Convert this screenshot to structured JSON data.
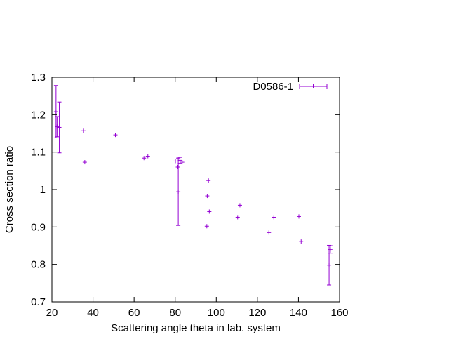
{
  "chart_data": {
    "type": "scatter",
    "title": "",
    "xlabel": "Scattering angle theta in lab. system",
    "ylabel": "Cross section ratio",
    "xlim": [
      20,
      160
    ],
    "ylim": [
      0.7,
      1.3
    ],
    "xticks": [
      20,
      40,
      60,
      80,
      100,
      120,
      140,
      160
    ],
    "yticks": [
      0.7,
      0.8,
      0.9,
      1,
      1.1,
      1.2,
      1.3
    ],
    "xtick_labels": [
      "20",
      "40",
      "60",
      "80",
      "100",
      "120",
      "140",
      "160"
    ],
    "ytick_labels": [
      "0.7",
      "0.8",
      "0.9",
      "1",
      "1.1",
      "1.2",
      "1.3"
    ],
    "grid": false,
    "legend_position": "top-right",
    "series": [
      {
        "name": "D0586-1",
        "color": "#9400d3",
        "points": [
          {
            "x": 22.0,
            "y": 1.208,
            "yerr": 0.07
          },
          {
            "x": 22.5,
            "y": 1.168,
            "yerr": 0.027
          },
          {
            "x": 23.6,
            "y": 1.166,
            "yerr": 0.068
          },
          {
            "x": 35.4,
            "y": 1.157
          },
          {
            "x": 36.0,
            "y": 1.073
          },
          {
            "x": 50.9,
            "y": 1.146
          },
          {
            "x": 64.8,
            "y": 1.084
          },
          {
            "x": 66.7,
            "y": 1.089
          },
          {
            "x": 80.1,
            "y": 1.076
          },
          {
            "x": 81.3,
            "y": 1.06
          },
          {
            "x": 81.5,
            "y": 0.994,
            "yerr": 0.09
          },
          {
            "x": 82.3,
            "y": 1.078,
            "yerr": 0.008
          },
          {
            "x": 83.4,
            "y": 1.073
          },
          {
            "x": 95.4,
            "y": 0.902
          },
          {
            "x": 95.6,
            "y": 0.983
          },
          {
            "x": 96.2,
            "y": 1.024
          },
          {
            "x": 96.6,
            "y": 0.941
          },
          {
            "x": 110.4,
            "y": 0.926
          },
          {
            "x": 111.5,
            "y": 0.958
          },
          {
            "x": 125.6,
            "y": 0.885
          },
          {
            "x": 128.0,
            "y": 0.926
          },
          {
            "x": 140.2,
            "y": 0.928
          },
          {
            "x": 141.3,
            "y": 0.861
          },
          {
            "x": 154.9,
            "y": 0.798,
            "yerr": 0.053
          },
          {
            "x": 155.5,
            "y": 0.84,
            "yerr": 0.01
          }
        ]
      }
    ]
  }
}
